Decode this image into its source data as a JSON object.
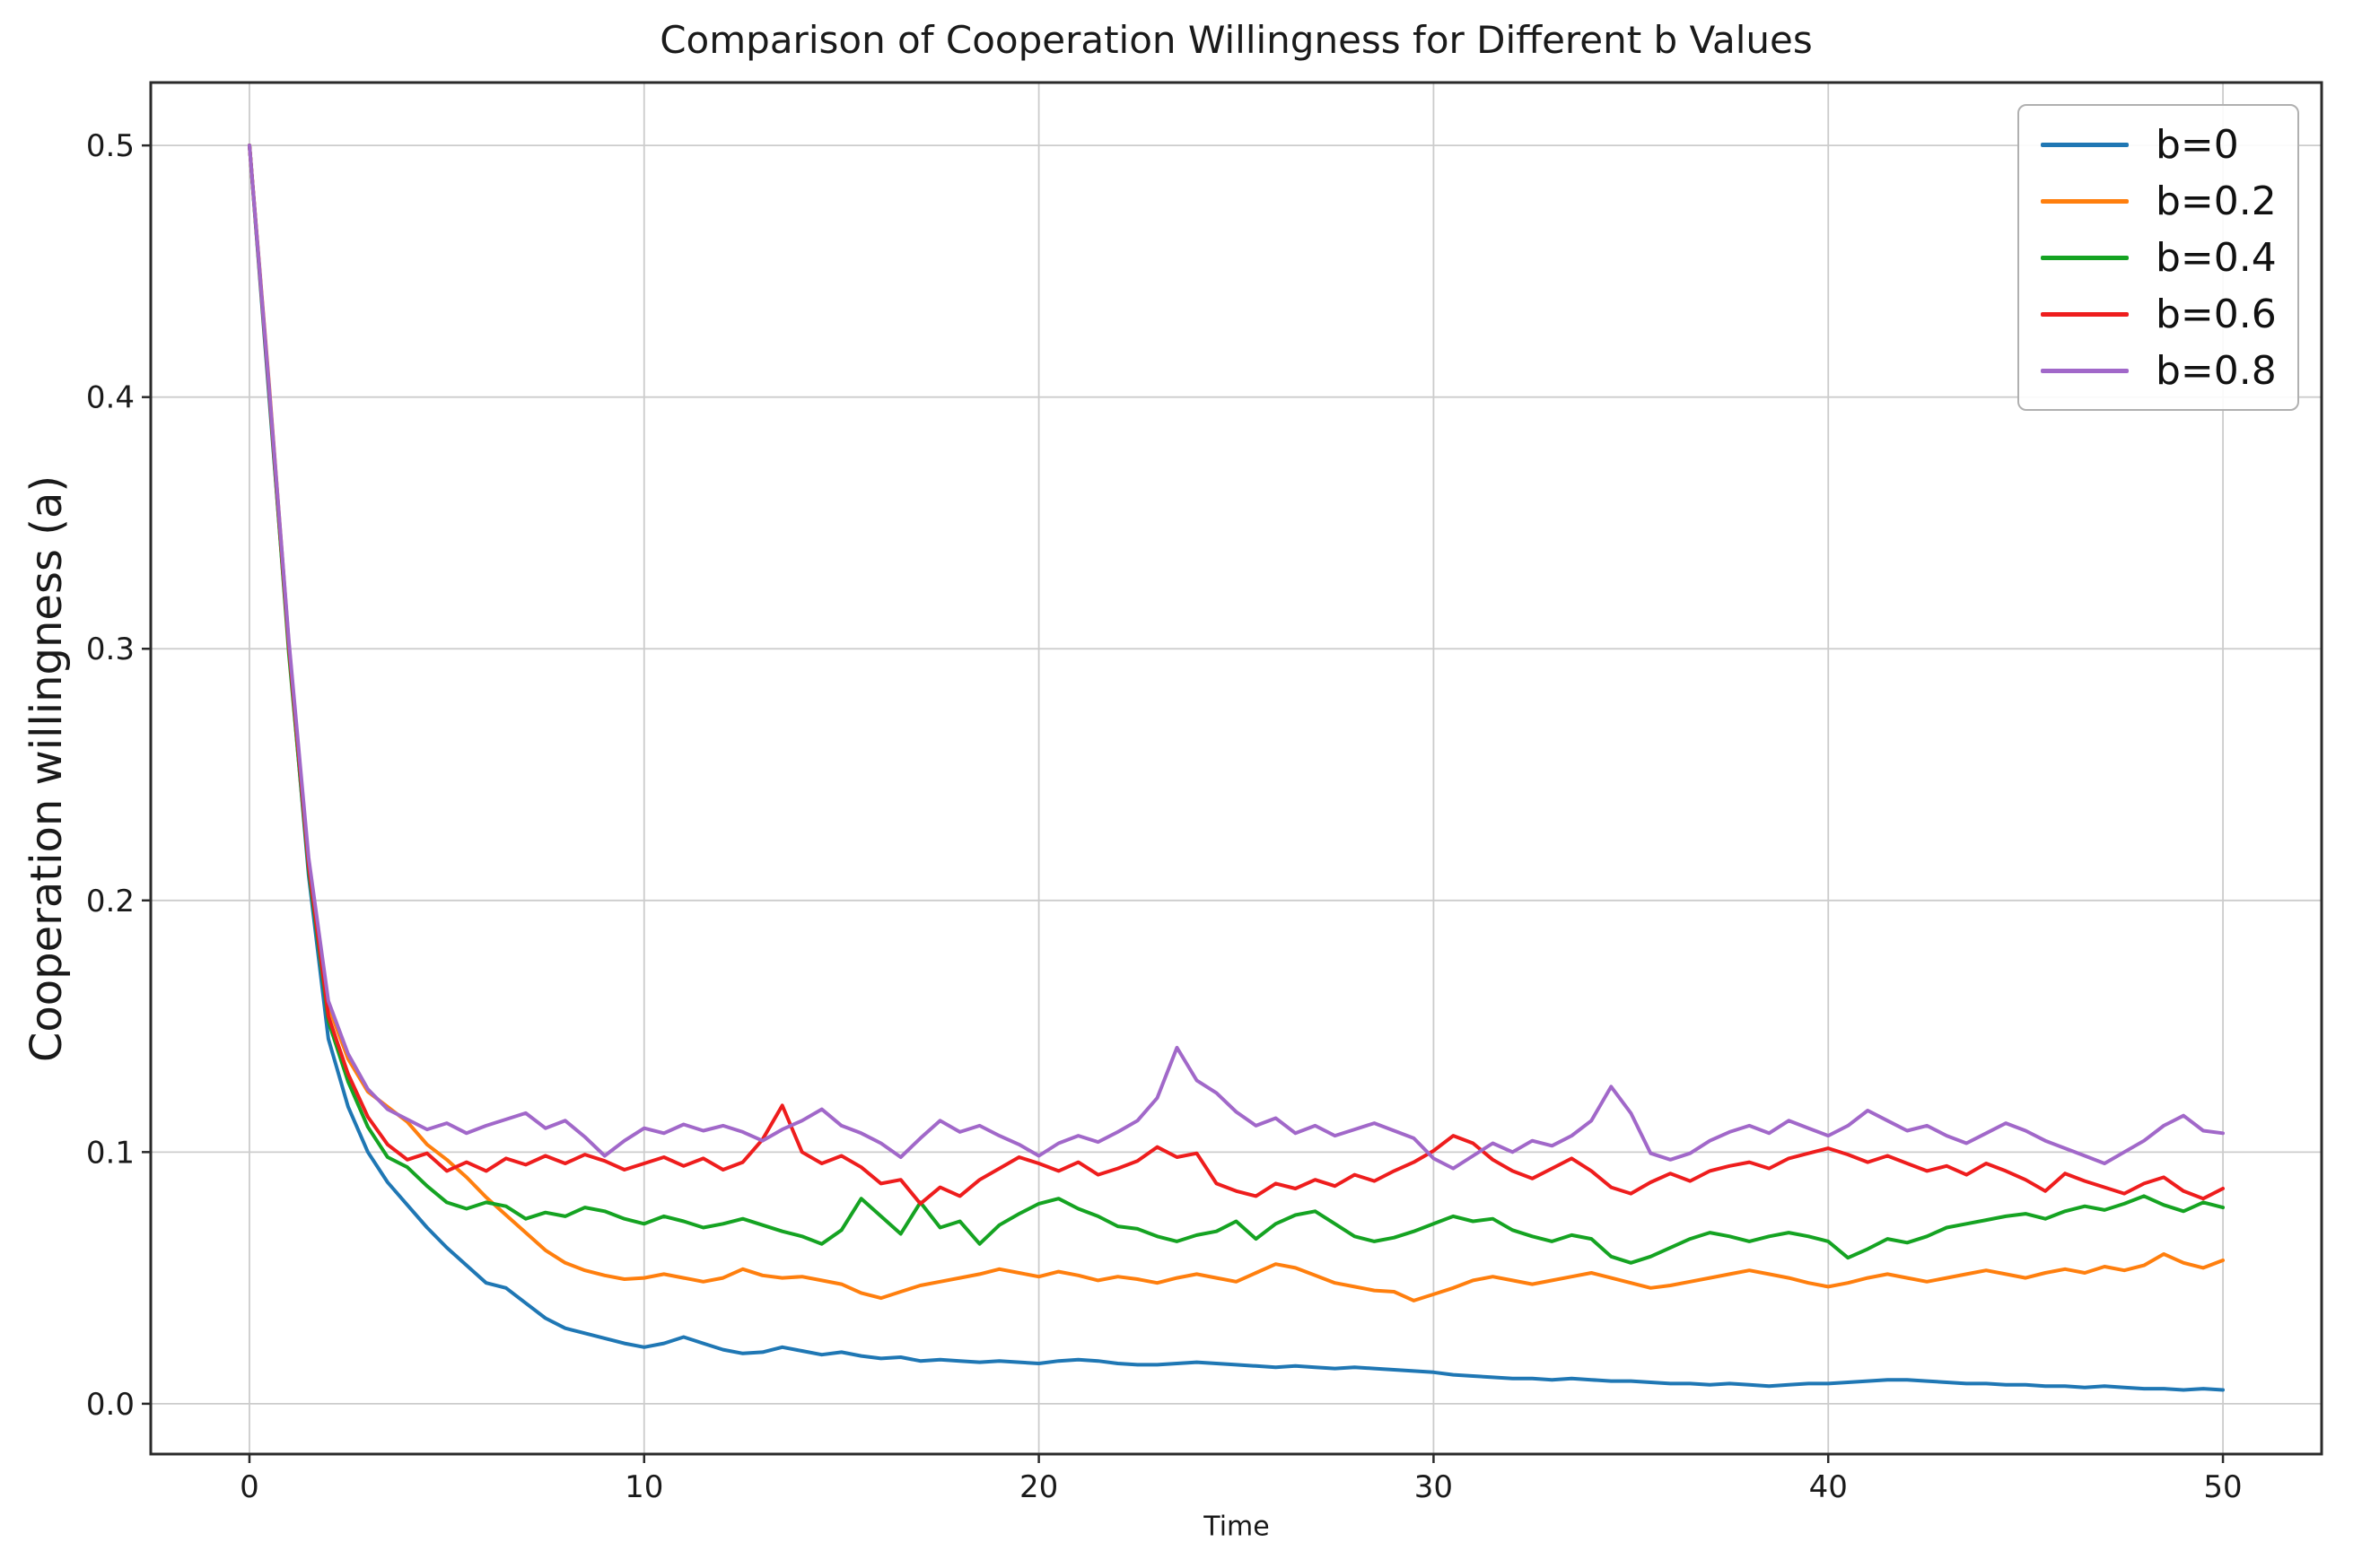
{
  "chart_data": {
    "type": "line",
    "title": "Comparison of Cooperation Willingness for Different b Values",
    "xlabel": "Time",
    "ylabel": "Cooperation willingness (a)",
    "xlim": [
      -2.5,
      52.5
    ],
    "ylim": [
      -0.02,
      0.525
    ],
    "x_ticks": [
      0,
      10,
      20,
      30,
      40,
      50
    ],
    "x_tick_labels": [
      "0",
      "10",
      "20",
      "30",
      "40",
      "50"
    ],
    "y_ticks": [
      0.0,
      0.1,
      0.2,
      0.3,
      0.4,
      0.5
    ],
    "y_tick_labels": [
      "0.0",
      "0.1",
      "0.2",
      "0.3",
      "0.4",
      "0.5"
    ],
    "grid": true,
    "legend_position": "upper right",
    "x_start": 0,
    "x_step": 0.5,
    "series": [
      {
        "name": "b=0",
        "color": "#1f77b4",
        "values": [
          0.5,
          0.4,
          0.3,
          0.21,
          0.145,
          0.118,
          0.1,
          0.088,
          0.079,
          0.07,
          0.062,
          0.055,
          0.048,
          0.046,
          0.04,
          0.034,
          0.03,
          0.028,
          0.026,
          0.024,
          0.0225,
          0.024,
          0.0265,
          0.024,
          0.0215,
          0.02,
          0.0205,
          0.0225,
          0.021,
          0.0195,
          0.0205,
          0.019,
          0.018,
          0.0185,
          0.017,
          0.0175,
          0.017,
          0.0165,
          0.017,
          0.0165,
          0.016,
          0.017,
          0.0175,
          0.017,
          0.016,
          0.0155,
          0.0155,
          0.016,
          0.0165,
          0.016,
          0.0155,
          0.015,
          0.0145,
          0.015,
          0.0145,
          0.014,
          0.0145,
          0.014,
          0.0135,
          0.013,
          0.0125,
          0.0115,
          0.011,
          0.0105,
          0.01,
          0.01,
          0.0095,
          0.01,
          0.0095,
          0.009,
          0.009,
          0.0085,
          0.008,
          0.008,
          0.0075,
          0.008,
          0.0075,
          0.007,
          0.0075,
          0.008,
          0.008,
          0.0085,
          0.009,
          0.0095,
          0.0095,
          0.009,
          0.0085,
          0.008,
          0.008,
          0.0075,
          0.0075,
          0.007,
          0.007,
          0.0065,
          0.007,
          0.0065,
          0.006,
          0.006,
          0.0055,
          0.006,
          0.0055
        ]
      },
      {
        "name": "b=0.2",
        "color": "#ff7f0e",
        "values": [
          0.5,
          0.405,
          0.302,
          0.215,
          0.158,
          0.137,
          0.124,
          0.118,
          0.112,
          0.103,
          0.097,
          0.09,
          0.082,
          0.075,
          0.068,
          0.061,
          0.056,
          0.053,
          0.051,
          0.0495,
          0.05,
          0.0515,
          0.05,
          0.0485,
          0.05,
          0.0535,
          0.051,
          0.05,
          0.0505,
          0.049,
          0.0475,
          0.044,
          0.042,
          0.0445,
          0.047,
          0.0485,
          0.05,
          0.0515,
          0.0535,
          0.052,
          0.0505,
          0.0525,
          0.051,
          0.049,
          0.0505,
          0.0495,
          0.048,
          0.05,
          0.0515,
          0.05,
          0.0485,
          0.052,
          0.0555,
          0.054,
          0.051,
          0.048,
          0.0465,
          0.045,
          0.0445,
          0.041,
          0.0435,
          0.046,
          0.049,
          0.0505,
          0.049,
          0.0475,
          0.049,
          0.0505,
          0.052,
          0.05,
          0.048,
          0.046,
          0.047,
          0.0485,
          0.05,
          0.0515,
          0.053,
          0.0515,
          0.05,
          0.048,
          0.0465,
          0.048,
          0.05,
          0.0515,
          0.05,
          0.0485,
          0.05,
          0.0515,
          0.053,
          0.0515,
          0.05,
          0.052,
          0.0535,
          0.052,
          0.0545,
          0.053,
          0.055,
          0.0595,
          0.056,
          0.054,
          0.057
        ]
      },
      {
        "name": "b=0.4",
        "color": "#15a322",
        "values": [
          0.5,
          0.402,
          0.298,
          0.212,
          0.152,
          0.128,
          0.11,
          0.098,
          0.094,
          0.0865,
          0.08,
          0.0775,
          0.08,
          0.0785,
          0.0735,
          0.076,
          0.0745,
          0.078,
          0.0765,
          0.0735,
          0.0715,
          0.0745,
          0.0725,
          0.07,
          0.0715,
          0.0735,
          0.071,
          0.0685,
          0.0665,
          0.0635,
          0.069,
          0.0815,
          0.0745,
          0.0675,
          0.08,
          0.07,
          0.0725,
          0.0635,
          0.071,
          0.0755,
          0.0795,
          0.0815,
          0.0775,
          0.0745,
          0.0705,
          0.0695,
          0.0665,
          0.0645,
          0.067,
          0.0685,
          0.0725,
          0.0655,
          0.0715,
          0.075,
          0.0765,
          0.0715,
          0.0665,
          0.0645,
          0.066,
          0.0685,
          0.0715,
          0.0745,
          0.0725,
          0.0735,
          0.069,
          0.0665,
          0.0645,
          0.067,
          0.0655,
          0.0585,
          0.056,
          0.0585,
          0.062,
          0.0655,
          0.068,
          0.0665,
          0.0645,
          0.0665,
          0.068,
          0.0665,
          0.0645,
          0.058,
          0.0615,
          0.0655,
          0.064,
          0.0665,
          0.07,
          0.0715,
          0.073,
          0.0745,
          0.0755,
          0.0735,
          0.0765,
          0.0785,
          0.077,
          0.0795,
          0.0825,
          0.079,
          0.0765,
          0.08,
          0.078
        ]
      },
      {
        "name": "b=0.6",
        "color": "#ee1d1d",
        "values": [
          0.5,
          0.403,
          0.301,
          0.214,
          0.154,
          0.131,
          0.114,
          0.103,
          0.097,
          0.0995,
          0.0925,
          0.096,
          0.0925,
          0.0975,
          0.095,
          0.0985,
          0.0955,
          0.099,
          0.0965,
          0.093,
          0.0955,
          0.098,
          0.0945,
          0.0975,
          0.093,
          0.096,
          0.105,
          0.1185,
          0.1,
          0.0955,
          0.0985,
          0.094,
          0.0875,
          0.089,
          0.0795,
          0.086,
          0.0825,
          0.089,
          0.0935,
          0.098,
          0.0955,
          0.0925,
          0.096,
          0.091,
          0.0935,
          0.0965,
          0.102,
          0.098,
          0.0995,
          0.0875,
          0.0845,
          0.0825,
          0.0875,
          0.0855,
          0.089,
          0.0865,
          0.091,
          0.0885,
          0.0925,
          0.096,
          0.1005,
          0.1065,
          0.1035,
          0.097,
          0.0925,
          0.0895,
          0.0935,
          0.0975,
          0.0925,
          0.086,
          0.0835,
          0.088,
          0.0915,
          0.0885,
          0.0925,
          0.0945,
          0.096,
          0.0935,
          0.0975,
          0.0995,
          0.1015,
          0.099,
          0.096,
          0.0985,
          0.0955,
          0.0925,
          0.0945,
          0.091,
          0.0955,
          0.0925,
          0.089,
          0.0845,
          0.0915,
          0.0885,
          0.086,
          0.0835,
          0.0875,
          0.09,
          0.0845,
          0.0815,
          0.0855
        ]
      },
      {
        "name": "b=0.8",
        "color": "#a168c9",
        "values": [
          0.5,
          0.404,
          0.303,
          0.217,
          0.16,
          0.139,
          0.125,
          0.117,
          0.113,
          0.109,
          0.1115,
          0.1075,
          0.1105,
          0.113,
          0.1155,
          0.1095,
          0.1125,
          0.106,
          0.0985,
          0.1045,
          0.1095,
          0.1075,
          0.111,
          0.1085,
          0.1105,
          0.108,
          0.1045,
          0.109,
          0.1125,
          0.117,
          0.1105,
          0.1075,
          0.1035,
          0.098,
          0.1055,
          0.1125,
          0.108,
          0.1105,
          0.1065,
          0.103,
          0.0985,
          0.1035,
          0.1065,
          0.104,
          0.108,
          0.1125,
          0.1215,
          0.1415,
          0.1285,
          0.1235,
          0.116,
          0.1105,
          0.1135,
          0.1075,
          0.1105,
          0.1065,
          0.109,
          0.1115,
          0.1085,
          0.1055,
          0.0975,
          0.0935,
          0.0985,
          0.1035,
          0.1,
          0.1045,
          0.1025,
          0.1065,
          0.1125,
          0.126,
          0.1155,
          0.0995,
          0.097,
          0.0995,
          0.1045,
          0.108,
          0.1105,
          0.1075,
          0.1125,
          0.1095,
          0.1065,
          0.1105,
          0.1165,
          0.1125,
          0.1085,
          0.1105,
          0.1065,
          0.1035,
          0.1075,
          0.1115,
          0.1085,
          0.1045,
          0.1015,
          0.0985,
          0.0955,
          0.1,
          0.1045,
          0.1105,
          0.1145,
          0.1085,
          0.1075
        ]
      }
    ]
  }
}
